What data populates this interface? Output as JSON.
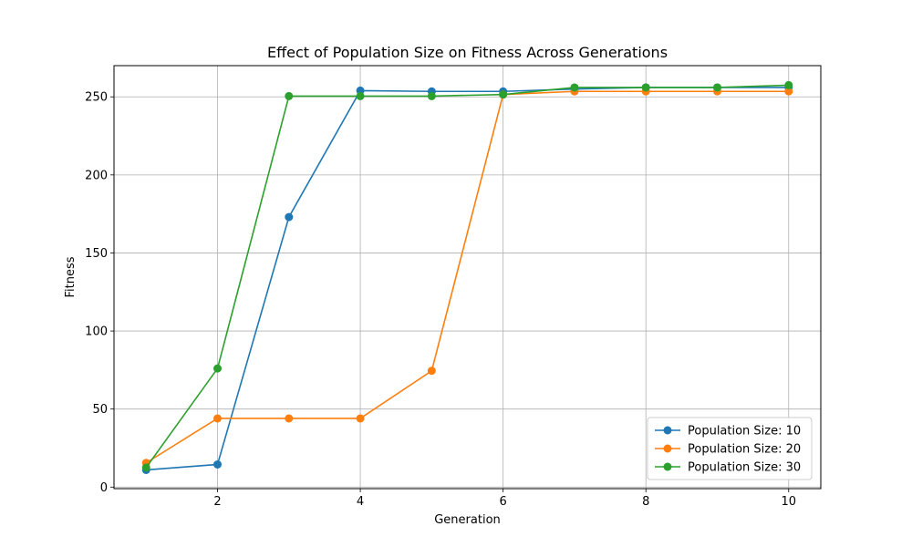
{
  "chart_data": {
    "type": "line",
    "title": "Effect of Population Size on Fitness Across Generations",
    "xlabel": "Generation",
    "ylabel": "Fitness",
    "x": [
      1,
      2,
      3,
      4,
      5,
      6,
      7,
      8,
      9,
      10
    ],
    "xlim": [
      0.55,
      10.45
    ],
    "ylim": [
      -1,
      270
    ],
    "xticks": [
      2,
      4,
      6,
      8,
      10
    ],
    "yticks": [
      0,
      50,
      100,
      150,
      200,
      250
    ],
    "grid": true,
    "legend_position": "lower-right",
    "series": [
      {
        "name": "Population Size: 10",
        "color": "#1f77b4",
        "values": [
          11,
          14.5,
          173,
          254,
          253.5,
          253.5,
          255,
          256,
          256,
          256
        ]
      },
      {
        "name": "Population Size: 20",
        "color": "#ff7f0e",
        "values": [
          15.5,
          44,
          44,
          44,
          74.5,
          251.5,
          253.5,
          253.5,
          253.5,
          253.5
        ]
      },
      {
        "name": "Population Size: 30",
        "color": "#2ca02c",
        "values": [
          12.5,
          76,
          250.5,
          250.5,
          250.5,
          251.5,
          256,
          256,
          256,
          257.5
        ]
      }
    ]
  }
}
